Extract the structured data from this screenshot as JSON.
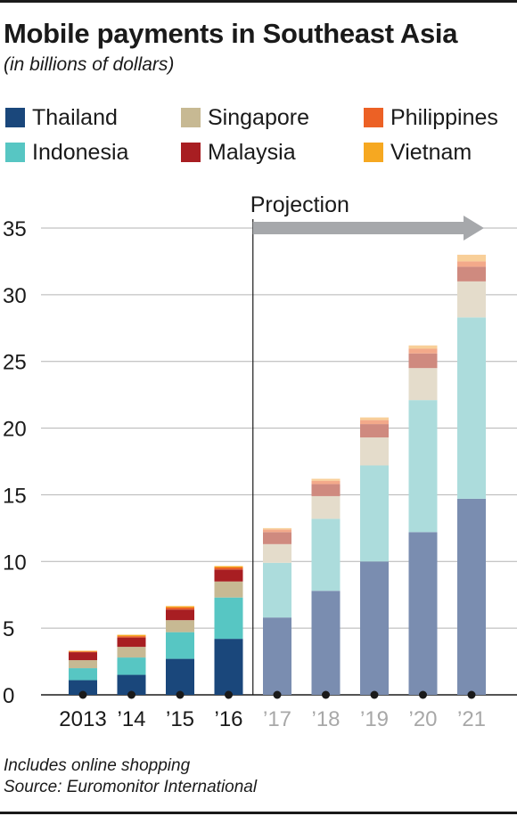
{
  "title": "Mobile payments in Southeast Asia",
  "subtitle": "(in billions of dollars)",
  "legend": [
    {
      "label": "Thailand",
      "color": "#1a477b"
    },
    {
      "label": "Singapore",
      "color": "#c7b993"
    },
    {
      "label": "Philippines",
      "color": "#ec6125"
    },
    {
      "label": "Indonesia",
      "color": "#57c6c3"
    },
    {
      "label": "Malaysia",
      "color": "#a81e22"
    },
    {
      "label": "Vietnam",
      "color": "#f6a821"
    }
  ],
  "projection_label": "Projection",
  "footnotes": [
    "Includes online shopping",
    "Source: Euromonitor International"
  ],
  "chart_data": {
    "type": "bar",
    "stacked": true,
    "categories": [
      "2013",
      "’14",
      "’15",
      "’16",
      "’17",
      "’18",
      "’19",
      "’20",
      "’21"
    ],
    "projected": [
      false,
      false,
      false,
      false,
      true,
      true,
      true,
      true,
      true
    ],
    "series": [
      {
        "name": "Thailand",
        "color": "#1a477b",
        "projected_color": "#7a8db0",
        "values": [
          1.1,
          1.5,
          2.7,
          4.2,
          5.8,
          7.8,
          10.0,
          12.2,
          14.7
        ]
      },
      {
        "name": "Indonesia",
        "color": "#57c6c3",
        "projected_color": "#acdcdc",
        "values": [
          0.9,
          1.3,
          2.0,
          3.1,
          4.1,
          5.4,
          7.2,
          9.9,
          13.6
        ]
      },
      {
        "name": "Singapore",
        "color": "#c7b993",
        "projected_color": "#e4dccb",
        "values": [
          0.6,
          0.8,
          0.9,
          1.2,
          1.4,
          1.7,
          2.1,
          2.4,
          2.7
        ]
      },
      {
        "name": "Malaysia",
        "color": "#a81e22",
        "projected_color": "#cf8a7f",
        "values": [
          0.6,
          0.7,
          0.8,
          0.9,
          0.9,
          0.9,
          1.0,
          1.1,
          1.1
        ]
      },
      {
        "name": "Philippines",
        "color": "#ec6125",
        "projected_color": "#f3a98a",
        "values": [
          0.05,
          0.1,
          0.15,
          0.15,
          0.2,
          0.25,
          0.3,
          0.35,
          0.4
        ]
      },
      {
        "name": "Vietnam",
        "color": "#f6a821",
        "projected_color": "#f8cf99",
        "values": [
          0.05,
          0.1,
          0.1,
          0.1,
          0.1,
          0.15,
          0.2,
          0.25,
          0.5
        ]
      }
    ],
    "ylim": [
      0,
      35
    ],
    "yticks": [
      0,
      5,
      10,
      15,
      20,
      25,
      30,
      35
    ],
    "grid": true,
    "xlabel": "",
    "ylabel": ""
  }
}
